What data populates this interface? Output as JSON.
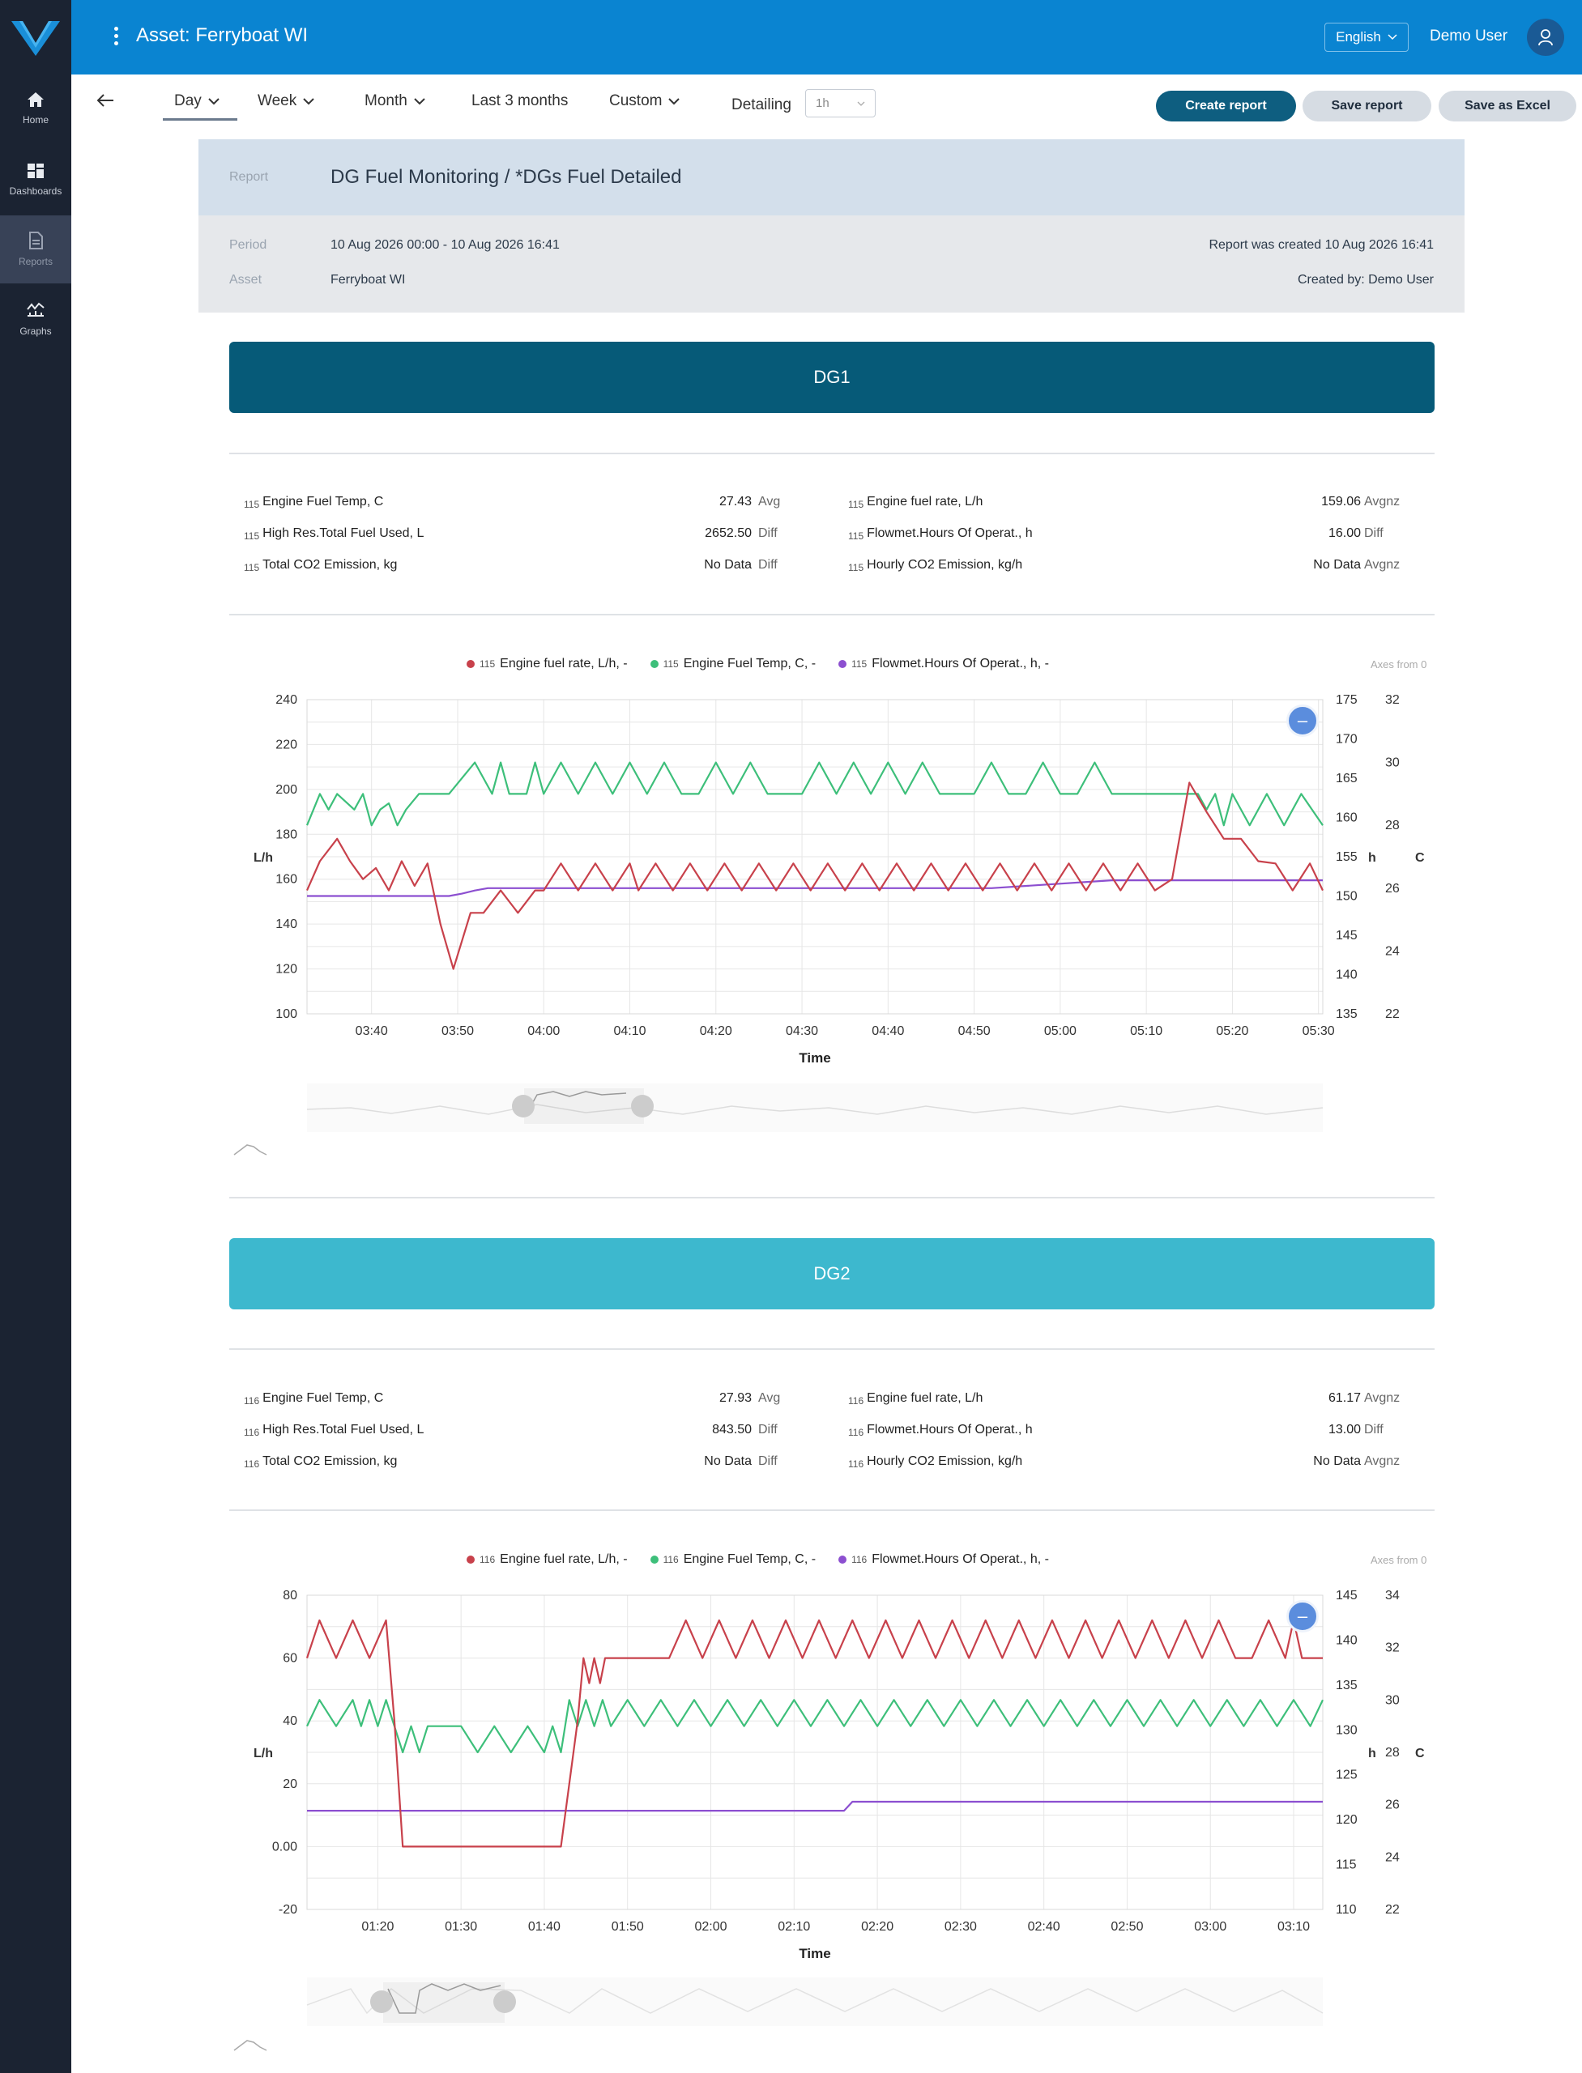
{
  "sidebar": {
    "items": [
      {
        "label": "Home",
        "icon": "home-icon"
      },
      {
        "label": "Dashboards",
        "icon": "dashboards-icon"
      },
      {
        "label": "Reports",
        "icon": "reports-icon"
      },
      {
        "label": "Graphs",
        "icon": "graphs-icon"
      }
    ]
  },
  "header": {
    "title": "Asset: Ferryboat WI",
    "language": "English",
    "user": "Demo User"
  },
  "toolbar": {
    "tabs": [
      "Day",
      "Week",
      "Month",
      "Last 3 months",
      "Custom"
    ],
    "active_tab": "Day",
    "detailing_label": "Detailing",
    "detailing_value": "1h",
    "create_report": "Create report",
    "save_report": "Save report",
    "save_excel": "Save as Excel"
  },
  "report": {
    "label": "Report",
    "title": "DG Fuel Monitoring / *DGs Fuel Detailed",
    "period_label": "Period",
    "period": "10 Aug 2026 00:00 - 10 Aug 2026 16:41",
    "asset_label": "Asset",
    "asset": "Ferryboat WI",
    "created": "Report was created 10 Aug 2026 16:41",
    "created_by": "Created by: Demo User"
  },
  "colors": {
    "fuel_rate": "#c8414b",
    "fuel_temp": "#3dbf7a",
    "hours": "#8c4fd0",
    "dg1_banner": "#065a78",
    "dg2_banner": "#3db8ce"
  },
  "sections": [
    {
      "name": "DG1",
      "metrics": [
        {
          "id": "115",
          "label": "Engine Fuel Temp, C",
          "value": "27.43",
          "agg": "Avg"
        },
        {
          "id": "115",
          "label": "Engine fuel rate, L/h",
          "value": "159.06",
          "agg": "Avgnz"
        },
        {
          "id": "115",
          "label": "High Res.Total Fuel Used, L",
          "value": "2652.50",
          "agg": "Diff"
        },
        {
          "id": "115",
          "label": "Flowmet.Hours Of Operat., h",
          "value": "16.00",
          "agg": "Diff"
        },
        {
          "id": "115",
          "label": "Total CO2 Emission, kg",
          "value": "No Data",
          "agg": "Diff"
        },
        {
          "id": "115",
          "label": "Hourly CO2 Emission, kg/h",
          "value": "No Data",
          "agg": "Avgnz"
        }
      ],
      "legend": [
        {
          "id": "115",
          "label": "Engine fuel rate, L/h, -"
        },
        {
          "id": "115",
          "label": "Engine Fuel Temp, C, -"
        },
        {
          "id": "115",
          "label": "Flowmet.Hours Of Operat., h, -"
        }
      ],
      "axes_note": "Axes from 0",
      "chart_data": {
        "type": "line",
        "x_ticks": [
          "03:40",
          "03:50",
          "04:00",
          "04:10",
          "04:20",
          "04:30",
          "04:40",
          "04:50",
          "05:00",
          "05:10",
          "05:20",
          "05:30"
        ],
        "xlabel": "Time",
        "x_range_min": [
          212.5,
          330.5
        ],
        "left_axis": {
          "label": "L/h",
          "ticks": [
            100,
            120,
            140,
            160,
            180,
            200,
            220,
            240
          ],
          "range": [
            100,
            240
          ]
        },
        "right_axis_h": {
          "label": "h",
          "ticks": [
            135,
            140,
            145,
            150,
            155,
            160,
            165,
            170,
            175
          ],
          "range": [
            135,
            175
          ]
        },
        "right_axis_c": {
          "label": "C",
          "ticks": [
            22,
            24,
            26,
            28,
            30,
            32
          ],
          "range": [
            22,
            32
          ]
        },
        "series": [
          {
            "name": "Engine fuel rate, L/h",
            "axis": "left",
            "x": [
              212.5,
              214,
              216,
              217.5,
              219,
              220.5,
              222,
              223.5,
              225,
              226.5,
              228,
              229.5,
              231.5,
              233,
              235,
              237,
              239,
              240,
              242,
              244,
              246,
              248,
              250,
              251,
              253,
              255,
              257,
              259,
              261,
              263,
              265,
              267,
              269,
              271,
              273,
              275,
              277,
              279,
              281,
              283,
              285,
              287,
              289,
              291,
              293,
              295,
              297,
              299,
              301,
              303,
              305,
              307,
              309,
              311,
              313,
              315,
              317,
              319,
              321,
              323,
              325,
              327,
              329,
              330.5
            ],
            "y": [
              155,
              168,
              178,
              168,
              160,
              165,
              155,
              168,
              157,
              167,
              140,
              120,
              145,
              145,
              155,
              145,
              155,
              155,
              167,
              155,
              167,
              155,
              167,
              155,
              167,
              155,
              167,
              155,
              167,
              155,
              167,
              155,
              167,
              155,
              167,
              155,
              167,
              155,
              167,
              155,
              167,
              155,
              167,
              155,
              167,
              155,
              167,
              155,
              167,
              155,
              167,
              155,
              167,
              155,
              160,
              203,
              190,
              178,
              178,
              168,
              167,
              155,
              167,
              155
            ]
          },
          {
            "name": "Engine Fuel Temp, C",
            "axis": "c",
            "x": [
              212.5,
              214,
              215,
              216,
              218,
              219,
              220,
              221,
              222,
              223,
              224,
              225.5,
              229,
              232,
              234,
              235,
              236,
              238,
              239,
              240,
              242,
              244,
              246,
              248,
              250,
              252,
              254,
              256,
              258,
              260,
              262,
              264,
              266,
              268,
              270,
              272,
              274,
              276,
              278,
              280,
              282,
              284,
              286,
              288,
              290,
              292,
              294,
              296,
              298,
              300,
              302,
              304,
              306,
              308,
              310,
              312,
              314,
              316,
              317,
              318,
              319,
              320,
              322,
              324,
              326,
              328,
              330.5
            ],
            "y": [
              28,
              29,
              28.5,
              29,
              28.5,
              29,
              28,
              28.5,
              28.7,
              28,
              28.5,
              29,
              29,
              30,
              29,
              30,
              29,
              29,
              30,
              29,
              30,
              29,
              30,
              29,
              30,
              29,
              30,
              29,
              29,
              30,
              29,
              30,
              29,
              29,
              29,
              30,
              29,
              30,
              29,
              30,
              29,
              30,
              29,
              29,
              29,
              30,
              29,
              29,
              30,
              29,
              29,
              30,
              29,
              29,
              29,
              29,
              29,
              29,
              28.5,
              29,
              28,
              29,
              28,
              29,
              28,
              29,
              28
            ]
          },
          {
            "name": "Flowmet.Hours Of Operat., h",
            "axis": "h",
            "x": [
              212.5,
              229,
              230.5,
              232,
              233.5,
              245,
              261,
              277,
              292,
              306,
              313,
              330.5
            ],
            "y": [
              150,
              150,
              150.3,
              150.7,
              151,
              151,
              151,
              151,
              151,
              152,
              152,
              152
            ]
          }
        ]
      }
    },
    {
      "name": "DG2",
      "metrics": [
        {
          "id": "116",
          "label": "Engine Fuel Temp, C",
          "value": "27.93",
          "agg": "Avg"
        },
        {
          "id": "116",
          "label": "Engine fuel rate, L/h",
          "value": "61.17",
          "agg": "Avgnz"
        },
        {
          "id": "116",
          "label": "High Res.Total Fuel Used, L",
          "value": "843.50",
          "agg": "Diff"
        },
        {
          "id": "116",
          "label": "Flowmet.Hours Of Operat., h",
          "value": "13.00",
          "agg": "Diff"
        },
        {
          "id": "116",
          "label": "Total CO2 Emission, kg",
          "value": "No Data",
          "agg": "Diff"
        },
        {
          "id": "116",
          "label": "Hourly CO2 Emission, kg/h",
          "value": "No Data",
          "agg": "Avgnz"
        }
      ],
      "legend": [
        {
          "id": "116",
          "label": "Engine fuel rate, L/h, -"
        },
        {
          "id": "116",
          "label": "Engine Fuel Temp, C, -"
        },
        {
          "id": "116",
          "label": "Flowmet.Hours Of Operat., h, -"
        }
      ],
      "axes_note": "Axes from 0",
      "chart_data": {
        "type": "line",
        "x_ticks": [
          "01:20",
          "01:30",
          "01:40",
          "01:50",
          "02:00",
          "02:10",
          "02:20",
          "02:30",
          "02:40",
          "02:50",
          "03:00",
          "03:10"
        ],
        "xlabel": "Time",
        "x_range_min": [
          71.5,
          193.5
        ],
        "left_axis": {
          "label": "L/h",
          "ticks": [
            "-20",
            "0.00",
            "20",
            "40",
            "60",
            "80"
          ],
          "range": [
            -20,
            80
          ]
        },
        "right_axis_h": {
          "label": "h",
          "ticks": [
            110,
            115,
            120,
            125,
            130,
            135,
            140,
            145
          ],
          "range": [
            110,
            145
          ]
        },
        "right_axis_c": {
          "label": "C",
          "ticks": [
            22,
            24,
            26,
            28,
            30,
            32,
            34
          ],
          "range": [
            22,
            34
          ]
        },
        "series": [
          {
            "name": "Engine fuel rate, L/h",
            "axis": "left",
            "x": [
              71.5,
              73,
              75,
              77,
              79,
              81,
              82,
              83,
              86,
              90,
              100,
              102,
              104,
              104.7,
              105.4,
              106,
              106.7,
              107.3,
              108,
              110,
              115,
              117,
              119,
              121,
              123,
              125,
              127,
              129,
              131,
              133,
              135,
              137,
              139,
              141,
              143,
              145,
              147,
              149,
              151,
              153,
              155,
              157,
              159,
              161,
              163,
              165,
              167,
              169,
              171,
              173,
              175,
              177,
              179,
              181,
              183,
              185,
              187,
              189,
              190,
              191,
              192,
              193.5
            ],
            "y": [
              60,
              72,
              60,
              72,
              60,
              72,
              40,
              0,
              0,
              0,
              0,
              0,
              40,
              60,
              52,
              60,
              52,
              60,
              60,
              60,
              60,
              72,
              60,
              72,
              60,
              72,
              60,
              72,
              60,
              72,
              60,
              72,
              60,
              72,
              60,
              72,
              60,
              72,
              60,
              72,
              60,
              72,
              60,
              72,
              60,
              72,
              60,
              72,
              60,
              72,
              60,
              72,
              60,
              72,
              60,
              60,
              72,
              60,
              72,
              60,
              60,
              60
            ]
          },
          {
            "name": "Engine Fuel Temp, C",
            "axis": "c",
            "x": [
              71.5,
              73,
              75,
              77,
              78,
              79,
              80,
              81,
              82,
              83,
              84,
              85,
              86,
              88,
              90,
              92,
              94,
              96,
              98,
              100,
              101,
              102,
              103,
              104,
              105,
              106,
              107,
              108,
              110,
              112,
              114,
              116,
              118,
              120,
              122,
              124,
              126,
              128,
              130,
              132,
              134,
              136,
              138,
              140,
              142,
              144,
              146,
              148,
              150,
              152,
              154,
              156,
              158,
              160,
              162,
              164,
              166,
              168,
              170,
              172,
              174,
              176,
              178,
              180,
              182,
              184,
              186,
              188,
              190,
              192,
              193.5
            ],
            "y": [
              29,
              30,
              29,
              30,
              29,
              30,
              29,
              30,
              29,
              28,
              29,
              28,
              29,
              29,
              29,
              28,
              29,
              28,
              29,
              28,
              29,
              28,
              30,
              29,
              30,
              29,
              30,
              29,
              30,
              29,
              30,
              29,
              30,
              29,
              30,
              29,
              30,
              29,
              30,
              29,
              30,
              29,
              30,
              29,
              30,
              29,
              30,
              29,
              30,
              29,
              30,
              29,
              30,
              29,
              30,
              29,
              30,
              29,
              30,
              29,
              30,
              29,
              30,
              29,
              30,
              29,
              30,
              29,
              30,
              29,
              30
            ]
          },
          {
            "name": "Flowmet.Hours Of Operat., h",
            "axis": "h",
            "x": [
              71.5,
              136,
              137,
              193.5
            ],
            "y": [
              121,
              121,
              122,
              122
            ]
          }
        ]
      }
    }
  ]
}
